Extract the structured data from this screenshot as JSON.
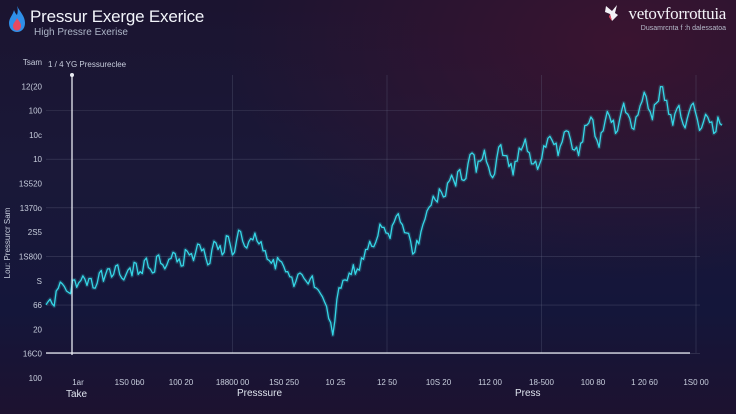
{
  "header": {
    "title": "Pressur Exerge Exerice",
    "subtitle": "High Pressre Exerise"
  },
  "brand": {
    "name": "vetovforrottuia",
    "tagline": "Dusamrcnta  f  :h dalessatoa"
  },
  "colors": {
    "line": "#35d6e6",
    "grid": "#6a6f8a",
    "baseline": "#e6e8f0"
  },
  "chart_data": {
    "type": "line",
    "title": "Pressur Exerge Exerice",
    "subtitle": "High Pressre Exerise",
    "annotation": "1 / 4 YG  Pressureclee",
    "ylabel": "Lou: Pressurcr Sam",
    "xlabel_left": "Take",
    "xlabel_center": "Presssure",
    "xlabel_right": "Press",
    "y_ticks": [
      "Tsam",
      "12(20",
      "100",
      "10c",
      "10",
      "1S520",
      "1370o",
      "2S5",
      "1S800",
      "S",
      "66",
      "20",
      "16C0",
      "100"
    ],
    "x_ticks": [
      "1ar",
      "1S0 0b0",
      "100 20",
      "18800 00",
      "1S0 250",
      "10 25",
      "12 50",
      "10S 20",
      "112 00",
      "18-500",
      "100 80",
      "1 20 60",
      "1S0 00"
    ],
    "grid": true,
    "series": [
      {
        "values": [
          40,
          44,
          39,
          52,
          55,
          50,
          48,
          58,
          56,
          61,
          54,
          59,
          52,
          63,
          57,
          66,
          60,
          68,
          62,
          58,
          65,
          61,
          70,
          64,
          72,
          67,
          63,
          75,
          70,
          66,
          73,
          78,
          71,
          68,
          80,
          76,
          72,
          84,
          79,
          74,
          70,
          86,
          80,
          76,
          90,
          83,
          78,
          94,
          86,
          81,
          88,
          92,
          84,
          79,
          73,
          70,
          66,
          72,
          68,
          64,
          60,
          57,
          63,
          59,
          55,
          61,
          52,
          48,
          42,
          30,
          18,
          44,
          52,
          58,
          63,
          69,
          66,
          74,
          80,
          86,
          82,
          90,
          96,
          92,
          88,
          100,
          106,
          98,
          92,
          86,
          78,
          84,
          98,
          108,
          112,
          116,
          124,
          118,
          128,
          134,
          126,
          138,
          130,
          142,
          150,
          136,
          144,
          152,
          140,
          132,
          146,
          156,
          148,
          140,
          134,
          144,
          152,
          160,
          150,
          142,
          138,
          146,
          154,
          162,
          156,
          148,
          158,
          166,
          160,
          152,
          148,
          158,
          170,
          176,
          162,
          154,
          166,
          180,
          172,
          164,
          174,
          186,
          178,
          168,
          176,
          184,
          194,
          182,
          174,
          186,
          198,
          188,
          178,
          170,
          182,
          176,
          168,
          180,
          186,
          174,
          168,
          178,
          172,
          164,
          176,
          170
        ]
      }
    ],
    "ylim": [
      0,
      210
    ]
  }
}
